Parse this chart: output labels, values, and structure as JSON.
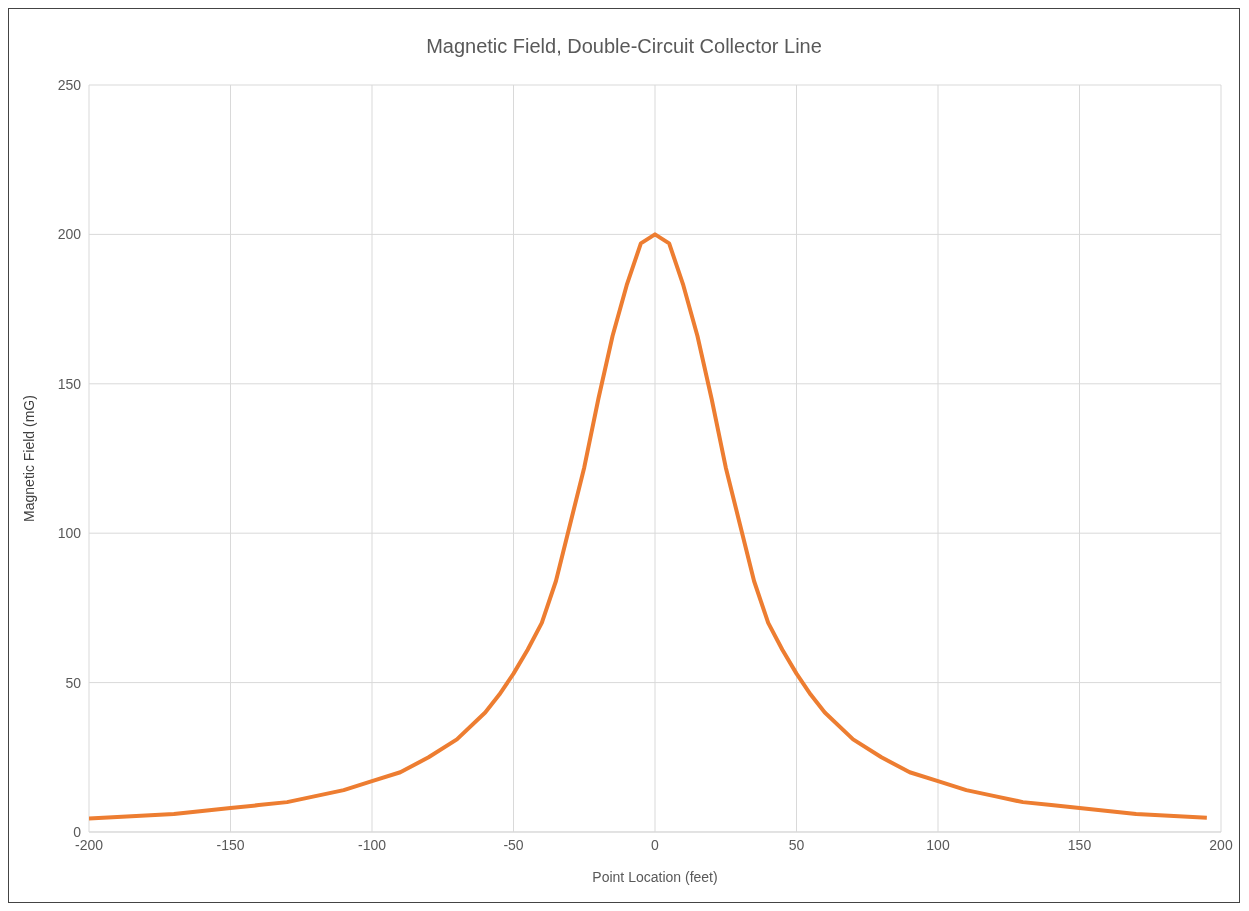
{
  "chart_data": {
    "type": "line",
    "title": "Magnetic Field, Double-Circuit Collector Line",
    "xlabel": "Point Location (feet)",
    "ylabel": "Magnetic Field (mG)",
    "x": [
      -200,
      -190,
      -180,
      -170,
      -160,
      -150,
      -140,
      -130,
      -120,
      -110,
      -100,
      -90,
      -80,
      -70,
      -60,
      -55,
      -50,
      -45,
      -40,
      -35,
      -30,
      -25,
      -20,
      -15,
      -10,
      -5,
      0,
      5,
      10,
      15,
      20,
      25,
      30,
      35,
      40,
      45,
      50,
      55,
      60,
      70,
      80,
      90,
      100,
      110,
      120,
      130,
      140,
      150,
      160,
      170,
      180,
      190,
      195
    ],
    "series": [
      {
        "color": "#ed7d31",
        "values": [
          4.5,
          5,
          5.5,
          6,
          7,
          8,
          9,
          10,
          12,
          14,
          17,
          20,
          25,
          31,
          40,
          46,
          53,
          61,
          70,
          84,
          103,
          122,
          145,
          166,
          183,
          197,
          200,
          197,
          183,
          166,
          145,
          122,
          103,
          84,
          70,
          61,
          53,
          46,
          40,
          31,
          25,
          20,
          17,
          14,
          12,
          10,
          9,
          8,
          7,
          6,
          5.5,
          5,
          4.8
        ]
      }
    ],
    "xlim": [
      -200,
      200
    ],
    "xticks": [
      -200,
      -150,
      -100,
      -50,
      0,
      50,
      100,
      150,
      200
    ],
    "ylim": [
      0,
      250
    ],
    "yticks": [
      0,
      50,
      100,
      150,
      200,
      250
    ],
    "grid": true,
    "legend": false,
    "marker": "none",
    "line_style": "solid"
  }
}
